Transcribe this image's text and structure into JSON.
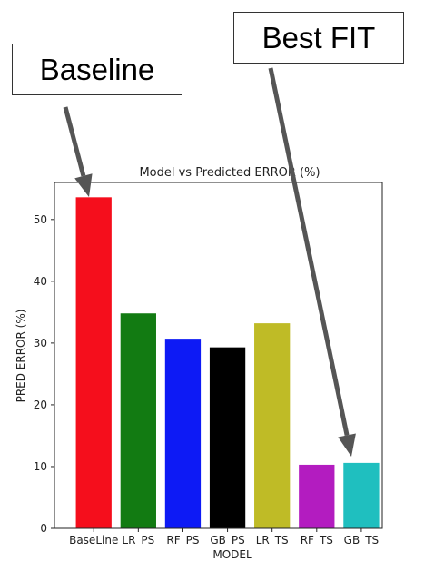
{
  "chart_data": {
    "type": "bar",
    "title": "Model vs Predicted ERROR (%)",
    "xlabel": "MODEL",
    "ylabel": "PRED ERROR (%)",
    "categories": [
      "BaseLine",
      "LR_PS",
      "RF_PS",
      "GB_PS",
      "LR_TS",
      "RF_TS",
      "GB_TS"
    ],
    "values": [
      53.6,
      34.8,
      30.7,
      29.3,
      33.2,
      10.3,
      10.6
    ],
    "colors": [
      "#f50e1c",
      "#127b12",
      "#0d1af5",
      "#000000",
      "#bfbb26",
      "#b31cc0",
      "#1fbfbf"
    ],
    "ylim": [
      0,
      56
    ],
    "yticks": [
      0,
      10,
      20,
      30,
      40,
      50
    ],
    "grid": false,
    "legend": "none"
  },
  "annotations": {
    "baseline_label": "Baseline",
    "best_fit_label": "Best FIT",
    "arrow_color": "#555555"
  }
}
